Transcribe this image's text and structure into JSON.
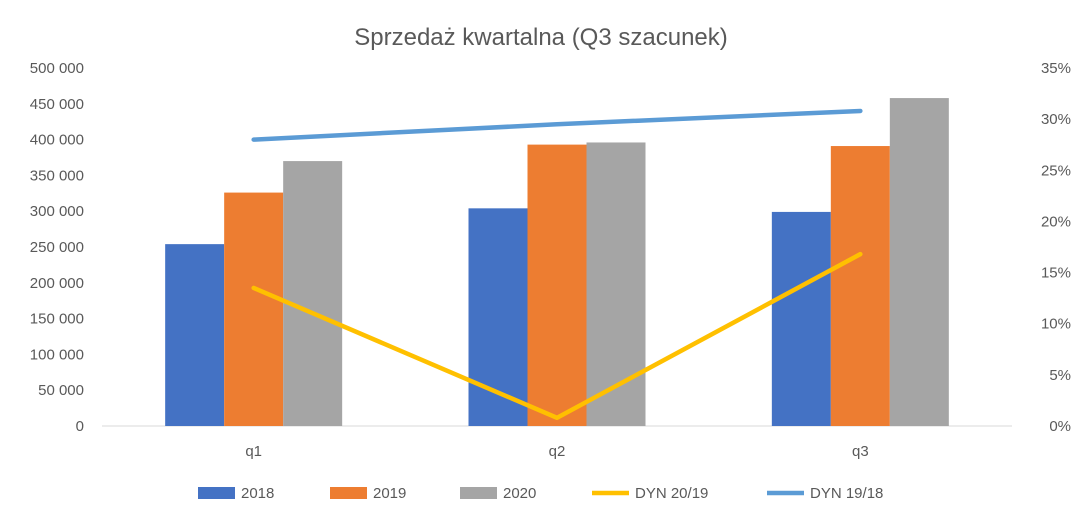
{
  "chart_data": {
    "type": "bar",
    "title": "Sprzedaż kwartalna (Q3 szacunek)",
    "categories": [
      "q1",
      "q2",
      "q3"
    ],
    "series": [
      {
        "name": "2018",
        "type": "bar",
        "axis": "left",
        "color": "#4472C4",
        "values": [
          254000,
          304000,
          299000
        ]
      },
      {
        "name": "2019",
        "type": "bar",
        "axis": "left",
        "color": "#ED7D31",
        "values": [
          326000,
          393000,
          391000
        ]
      },
      {
        "name": "2020",
        "type": "bar",
        "axis": "left",
        "color": "#A5A5A5",
        "values": [
          370000,
          396000,
          458000
        ]
      },
      {
        "name": "DYN 20/19",
        "type": "line",
        "axis": "right",
        "color": "#FFC000",
        "values": [
          0.135,
          0.008,
          0.168
        ]
      },
      {
        "name": "DYN 19/18",
        "type": "line",
        "axis": "right",
        "color": "#5B9BD5",
        "values": [
          0.28,
          0.295,
          0.308
        ]
      }
    ],
    "y_left": {
      "min": 0,
      "max": 500000,
      "ticks": [
        0,
        50000,
        100000,
        150000,
        200000,
        250000,
        300000,
        350000,
        400000,
        450000,
        500000
      ],
      "tick_labels": [
        "0",
        "50 000",
        "100 000",
        "150 000",
        "200 000",
        "250 000",
        "300 000",
        "350 000",
        "400 000",
        "450 000",
        "500 000"
      ]
    },
    "y_right": {
      "min": 0,
      "max": 0.35,
      "ticks": [
        0,
        0.05,
        0.1,
        0.15,
        0.2,
        0.25,
        0.3,
        0.35
      ],
      "tick_labels": [
        "0%",
        "5%",
        "10%",
        "15%",
        "20%",
        "25%",
        "30%",
        "35%"
      ]
    },
    "grid": false,
    "legend_position": "bottom"
  }
}
